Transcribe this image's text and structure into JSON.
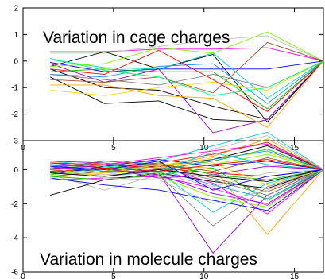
{
  "chart_data": [
    {
      "type": "line",
      "annotation": "Variation in cage charges",
      "xlim": [
        0,
        16.6
      ],
      "ylim": [
        -3,
        2
      ],
      "x_ticks": [
        0,
        5,
        10,
        15
      ],
      "y_ticks": [
        -3,
        -2,
        -1,
        0,
        1,
        2
      ],
      "x_ticks_labeled": false,
      "grid": false,
      "x": [
        1.5,
        4.5,
        7.5,
        10.5,
        13.5,
        16.6
      ],
      "series": [
        {
          "color": "#ff00ff",
          "values": [
            0.35,
            0.35,
            0.45,
            0.45,
            0.5,
            0.0
          ]
        },
        {
          "color": "#bdbdbd",
          "values": [
            0.3,
            0.3,
            0.55,
            0.8,
            0.95,
            0.0
          ]
        },
        {
          "color": "#000000",
          "values": [
            -0.2,
            0.35,
            -0.3,
            0.25,
            -2.3,
            0.0
          ]
        },
        {
          "color": "#000000",
          "values": [
            -0.6,
            -1.6,
            -1.5,
            -2.2,
            -2.3,
            0.0
          ]
        },
        {
          "color": "#000000",
          "values": [
            -0.3,
            -1.0,
            -1.1,
            -1.7,
            -2.2,
            0.0
          ]
        },
        {
          "color": "#0000ff",
          "values": [
            -0.05,
            -0.4,
            -0.3,
            -0.3,
            -0.3,
            0.0
          ]
        },
        {
          "color": "#1e90ff",
          "values": [
            -0.5,
            -0.6,
            -0.2,
            -0.1,
            -1.6,
            0.0
          ]
        },
        {
          "color": "#00ced1",
          "values": [
            0.05,
            -0.25,
            -0.3,
            0.3,
            -1.4,
            0.0
          ]
        },
        {
          "color": "#9400d3",
          "values": [
            -0.1,
            -0.8,
            -0.3,
            -2.7,
            -2.2,
            0.0
          ]
        },
        {
          "color": "#ff0000",
          "values": [
            -0.3,
            -0.5,
            0.4,
            -0.7,
            -1.9,
            0.0
          ]
        },
        {
          "color": "#00c000",
          "values": [
            -0.4,
            -0.3,
            -0.4,
            -0.4,
            -1.8,
            0.0
          ]
        },
        {
          "color": "#7cfc00",
          "values": [
            -0.2,
            -0.1,
            0.5,
            0.3,
            1.1,
            0.0
          ]
        },
        {
          "color": "#ffa500",
          "values": [
            -0.9,
            -0.9,
            -1.3,
            -1.4,
            -2.5,
            0.0
          ]
        },
        {
          "color": "#ffd700",
          "values": [
            -1.1,
            -1.3,
            -1.0,
            -0.8,
            -1.1,
            0.0
          ]
        },
        {
          "color": "#a0522d",
          "values": [
            -0.7,
            -0.8,
            -0.6,
            -1.2,
            0.7,
            0.0
          ]
        },
        {
          "color": "#808080",
          "values": [
            -0.5,
            -0.7,
            -0.9,
            -0.5,
            -1.0,
            0.0
          ]
        },
        {
          "color": "#00ff7f",
          "values": [
            0.1,
            -0.35,
            -0.6,
            -1.3,
            -1.0,
            0.0
          ]
        }
      ]
    },
    {
      "type": "line",
      "annotation": "Variation in molecule charges",
      "xlim": [
        0,
        16.6
      ],
      "ylim": [
        -6,
        1.7
      ],
      "x_ticks": [
        0,
        5,
        10,
        15
      ],
      "y_ticks": [
        -6,
        -4,
        -2,
        0
      ],
      "x_ticks_labeled": true,
      "grid": false,
      "x": [
        1.5,
        4.5,
        7.5,
        10.5,
        13.5,
        16.6
      ],
      "series_palette": [
        "#000000",
        "#ff0000",
        "#00c000",
        "#0000ff",
        "#ff00ff",
        "#00ced1",
        "#ffd700",
        "#ffa500",
        "#9400d3",
        "#7cfc00",
        "#bdbdbd",
        "#a0522d",
        "#1e90ff",
        "#808080"
      ],
      "series": [
        {
          "color": "#9400d3",
          "values": [
            0.5,
            0.4,
            -0.2,
            -4.9,
            -1.5,
            0.0
          ]
        },
        {
          "color": "#ffa500",
          "values": [
            0.4,
            0.3,
            0.2,
            0.1,
            -3.8,
            0.0
          ]
        },
        {
          "color": "#808080",
          "values": [
            0.3,
            0.1,
            -0.3,
            -3.3,
            -1.0,
            0.0
          ]
        },
        {
          "color": "#00ced1",
          "values": [
            0.0,
            -0.4,
            -0.1,
            -2.5,
            -0.8,
            0.0
          ]
        },
        {
          "color": "#ff00ff",
          "values": [
            -0.2,
            0.1,
            0.2,
            -0.8,
            -2.6,
            0.0
          ]
        },
        {
          "color": "#bdbdbd",
          "values": [
            -0.3,
            -1.2,
            -0.3,
            1.2,
            2.0,
            0.0
          ]
        },
        {
          "color": "#00ced1",
          "values": [
            0.2,
            0.3,
            0.5,
            1.4,
            2.2,
            0.0
          ]
        },
        {
          "color": "#0000ff",
          "values": [
            -0.5,
            -0.9,
            -1.2,
            -1.8,
            -2.4,
            0.0
          ]
        },
        {
          "color": "#ff0000",
          "values": [
            0.1,
            0.2,
            0.4,
            0.9,
            1.6,
            0.0
          ]
        },
        {
          "color": "#000000",
          "values": [
            -0.1,
            0.0,
            0.2,
            0.6,
            1.4,
            0.0
          ]
        },
        {
          "color": "#00c000",
          "values": [
            0.3,
            0.1,
            0.0,
            0.5,
            1.2,
            0.0
          ]
        },
        {
          "color": "#ffd700",
          "values": [
            -0.2,
            -0.3,
            0.1,
            0.7,
            1.0,
            0.0
          ]
        },
        {
          "color": "#7cfc00",
          "values": [
            0.0,
            0.2,
            -0.2,
            0.3,
            0.9,
            0.0
          ]
        },
        {
          "color": "#a0522d",
          "values": [
            -0.4,
            -0.1,
            0.3,
            -0.5,
            -1.3,
            0.0
          ]
        },
        {
          "color": "#1e90ff",
          "values": [
            0.2,
            -0.2,
            0.0,
            -0.9,
            -1.7,
            0.0
          ]
        },
        {
          "color": "#ff00ff",
          "values": [
            -0.6,
            -0.5,
            -0.4,
            -1.1,
            -2.1,
            0.0
          ]
        },
        {
          "color": "#000000",
          "values": [
            -1.5,
            -0.6,
            -0.2,
            -0.7,
            -1.1,
            0.0
          ]
        },
        {
          "color": "#9400d3",
          "values": [
            0.1,
            0.0,
            -0.3,
            -1.4,
            -2.0,
            0.0
          ]
        },
        {
          "color": "#00c000",
          "values": [
            -0.2,
            0.1,
            0.4,
            -0.3,
            -0.6,
            0.0
          ]
        },
        {
          "color": "#ff0000",
          "values": [
            0.4,
            0.3,
            0.1,
            -0.2,
            -0.4,
            0.0
          ]
        },
        {
          "color": "#0000ff",
          "values": [
            -0.3,
            0.2,
            0.6,
            0.2,
            0.5,
            0.0
          ]
        },
        {
          "color": "#ffa500",
          "values": [
            0.0,
            -0.2,
            0.2,
            0.8,
            1.8,
            0.0
          ]
        },
        {
          "color": "#808080",
          "values": [
            0.2,
            0.4,
            0.1,
            -0.6,
            -1.5,
            0.0
          ]
        },
        {
          "color": "#bdbdbd",
          "values": [
            -0.1,
            -0.3,
            -0.2,
            -1.0,
            -0.2,
            0.0
          ]
        },
        {
          "color": "#00ced1",
          "values": [
            0.5,
            0.2,
            0.0,
            1.0,
            0.3,
            0.0
          ]
        },
        {
          "color": "#ffd700",
          "values": [
            -0.5,
            -0.2,
            0.3,
            0.4,
            -0.9,
            0.0
          ]
        },
        {
          "color": "#a0522d",
          "values": [
            0.1,
            0.5,
            0.3,
            -0.1,
            0.7,
            0.0
          ]
        },
        {
          "color": "#7cfc00",
          "values": [
            -0.3,
            0.0,
            -0.4,
            -1.6,
            -2.2,
            0.0
          ]
        },
        {
          "color": "#1e90ff",
          "values": [
            0.3,
            -0.1,
            -0.1,
            0.6,
            1.1,
            0.0
          ]
        },
        {
          "color": "#000000",
          "values": [
            -0.2,
            -0.4,
            0.0,
            -0.4,
            -0.7,
            0.0
          ]
        },
        {
          "color": "#ff00ff",
          "values": [
            0.0,
            0.3,
            0.7,
            1.1,
            1.5,
            0.0
          ]
        },
        {
          "color": "#9400d3",
          "values": [
            0.4,
            0.1,
            -0.5,
            -0.3,
            0.2,
            0.0
          ]
        },
        {
          "color": "#00c000",
          "values": [
            -0.4,
            -0.6,
            -0.3,
            0.1,
            -1.8,
            0.0
          ]
        },
        {
          "color": "#0000ff",
          "values": [
            0.2,
            0.0,
            0.5,
            -1.2,
            -0.4,
            0.0
          ]
        },
        {
          "color": "#ff0000",
          "values": [
            -0.1,
            0.1,
            -0.1,
            0.3,
            0.6,
            0.0
          ]
        },
        {
          "color": "#bdbdbd",
          "values": [
            0.1,
            -0.5,
            -0.6,
            -2.0,
            -1.2,
            0.0
          ]
        }
      ]
    }
  ]
}
